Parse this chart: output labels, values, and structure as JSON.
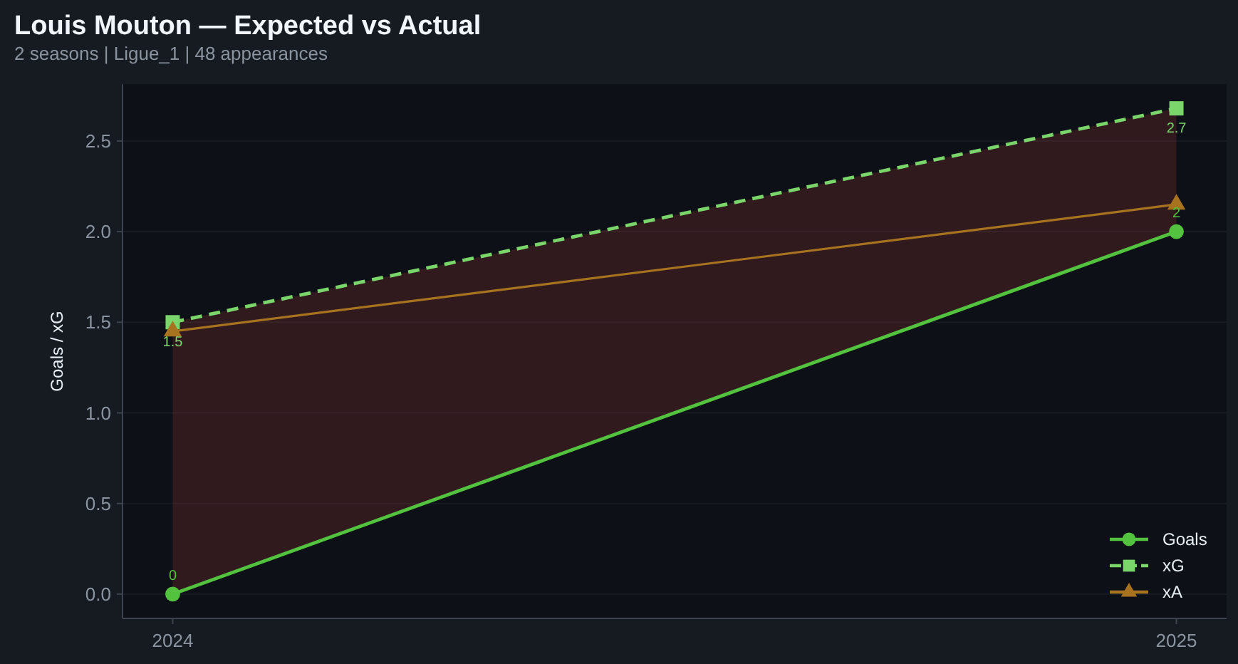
{
  "chart_data": {
    "type": "line",
    "title": "Louis Mouton — Expected vs Actual",
    "subtitle": "2 seasons | Ligue_1 | 48 appearances",
    "ylabel": "Goals / xG",
    "x": [
      2024,
      2025
    ],
    "xlim": [
      2023.95,
      2025.05
    ],
    "xticks": [
      2024,
      2025
    ],
    "ylim": [
      -0.134,
      2.814
    ],
    "yticks": [
      {
        "value": 0,
        "label": "0.0"
      },
      0.5,
      {
        "value": 1,
        "label": "1.0"
      },
      1.5,
      {
        "value": 2,
        "label": "2.0"
      },
      2.5
    ],
    "grid": "y",
    "legend": "bottom right",
    "series": [
      {
        "name": "Goals",
        "color": "#52c23f",
        "values": [
          0,
          2
        ],
        "marker": "circle",
        "line_style": "solid",
        "value_labels": [
          "0",
          "2"
        ]
      },
      {
        "name": "xG",
        "color": "#7ad66a",
        "values": [
          1.5,
          2.68
        ],
        "marker": "square",
        "line_style": "dashed",
        "value_labels": [
          "1.5",
          "2.7"
        ],
        "lower": [
          0,
          2
        ],
        "upper": [
          1.5,
          2.68
        ]
      },
      {
        "name": "xA",
        "color": "#a8731f",
        "values": [
          1.45,
          2.15
        ],
        "marker": "triangle",
        "line_style": "solid"
      }
    ]
  }
}
